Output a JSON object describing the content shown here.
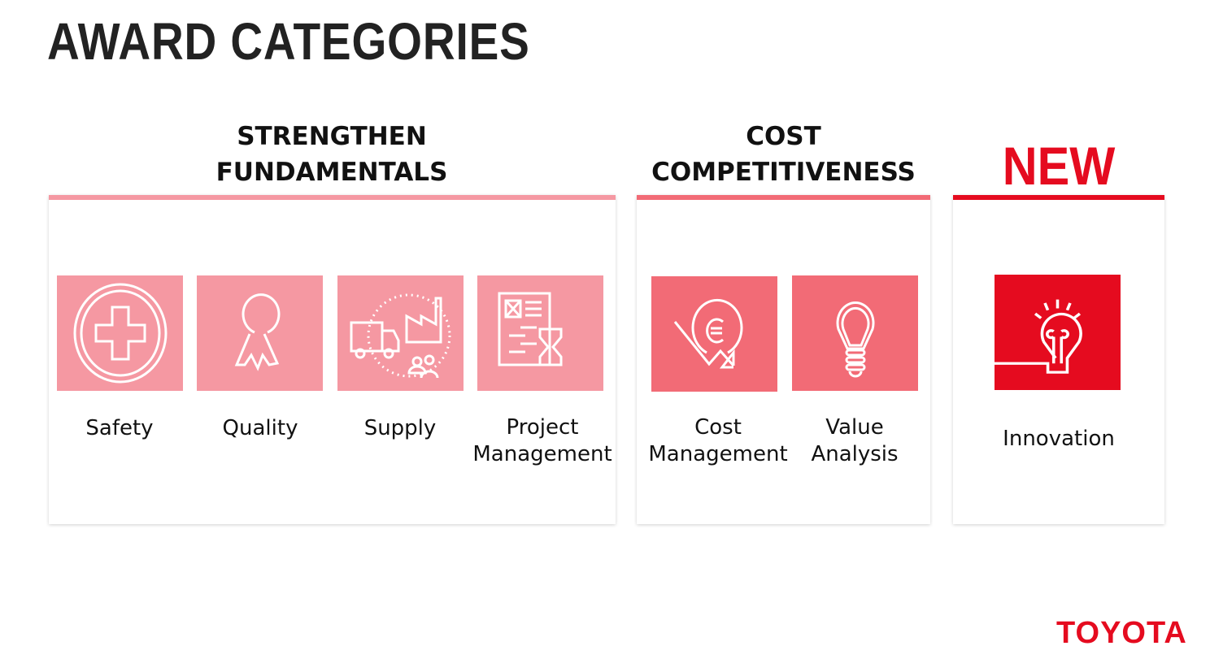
{
  "title": "AWARD CATEGORIES",
  "colors": {
    "light": "#f598a2",
    "medium": "#f26b76",
    "red": "#e50b1f"
  },
  "groups": [
    {
      "heading_line1": "STRENGTHEN",
      "heading_line2": "FUNDAMENTALS",
      "items": [
        {
          "label": "Safety",
          "icon": "medical-cross-icon"
        },
        {
          "label": "Quality",
          "icon": "award-ribbon-icon"
        },
        {
          "label": "Supply",
          "icon": "supply-chain-icon"
        },
        {
          "label_line1": "Project",
          "label_line2": "Management",
          "icon": "project-document-hourglass-icon"
        }
      ]
    },
    {
      "heading_line1": "COST",
      "heading_line2": "COMPETITIVENESS",
      "items": [
        {
          "label_line1": "Cost",
          "label_line2": "Management",
          "icon": "euro-down-arrow-icon"
        },
        {
          "label_line1": "Value",
          "label_line2": "Analysis",
          "icon": "lightbulb-icon"
        }
      ]
    },
    {
      "heading": "NEW",
      "items": [
        {
          "label": "Innovation",
          "icon": "idea-lightbulb-icon"
        }
      ]
    }
  ],
  "logo": "TOYOTA"
}
